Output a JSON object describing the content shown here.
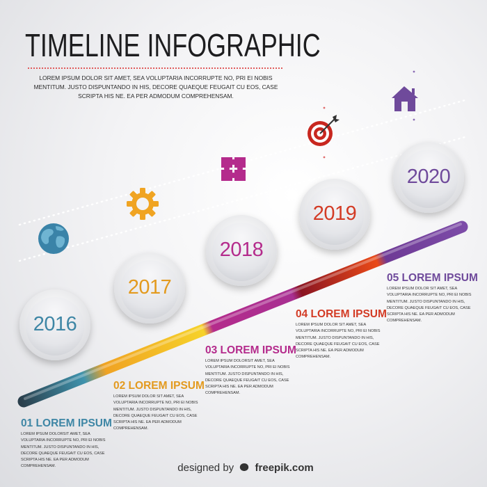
{
  "title": "TIMELINE INFOGRAPHIC",
  "intro": "LOREM IPSUM DOLOR SIT AMET, SEA VOLUPTARIA INCORRUPTE NO, PRI EI NOBIS MENTITUM. JUSTO DISPUNTANDO IN HIS, DECORE QUAEQUE FEUGAIT CU EOS, CASE SCRIPTA HIS NE. EA PER ADMODUM COMPREHENSAM.",
  "steps": [
    {
      "year": "2016",
      "title": "01 LOREM IPSUM",
      "color": "#3e86a5",
      "icon": "globe-icon",
      "text": "LOREM IPSUM DOLORSIT AMET, SEA VOLUPTARIA INCORRUPTE NO, PRI EI NOBIS MENTITUM. JUSTO DISPUNTANDO IN HIS, DECORE QUAEQUE FEUGAIT CU EOS, CASE SCRIPTA HIS NE. EA PER ADMODUM COMPREHENSAM."
    },
    {
      "year": "2017",
      "title": "02 LOREM IPSUM",
      "color": "#e39a1e",
      "icon": "gear-icon",
      "text": "LOREM IPSUM DOLOR SIT AMET, SEA VOLUPTARIA INCORRUPTE NO, PRI EI NOBIS MENTITUM. JUSTO DISPUNTANDO IN HIS, DECORE QUAEQUE FEUGAIT CU EOS, CASE SCRIPTA HIS NE. EA PER ADMODUM COMPREHENSAM."
    },
    {
      "year": "2018",
      "title": "03 LOREM IPSUM",
      "color": "#b42b8c",
      "icon": "puzzle-icon",
      "text": "LOREM IPSUM DOLORSIT AMET, SEA VOLUPTARIA INCORRUPTE NO, PRI EI NOBIS MENTITUM. JUSTO DISPUNTANDO IN HIS, DECORE QUAEQUE FEUGAIT CU EOS, CASE SCRIPTA HIS NE. EA PER ADMODUM COMPREHENSAM."
    },
    {
      "year": "2019",
      "title": "04 LOREM IPSUM",
      "color": "#d33b25",
      "icon": "target-icon",
      "text": "LOREM IPSUM DOLOR SIT AMET, SEA VOLUPTARIA INCORRUPTE NO, PRI EI NOBIS MENTITUM. JUSTO DISPUNTANDO IN HIS, DECORE QUAEQUE FEUGAIT CU EOS, CASE SCRIPTA HIS NE. EA PER ADMODUM COMPREHENSAM."
    },
    {
      "year": "2020",
      "title": "05 LOREM IPSUM",
      "color": "#6f4a9b",
      "icon": "house-icon",
      "text": "LOREM IPSUM DOLOR SIT AMET, SEA VOLUPTARIA INCORRUPTE NO, PRI EI NOBIS MENTITUM. JUSTO DISPUNTANDO IN HIS, DECORE QUAEQUE FEUGAIT CU EOS, CASE SCRIPTA HIS NE. EA PER ADMODUM COMPREHENSAM."
    }
  ],
  "footer": {
    "prefix": "designed by",
    "brand": "freepik.com"
  }
}
